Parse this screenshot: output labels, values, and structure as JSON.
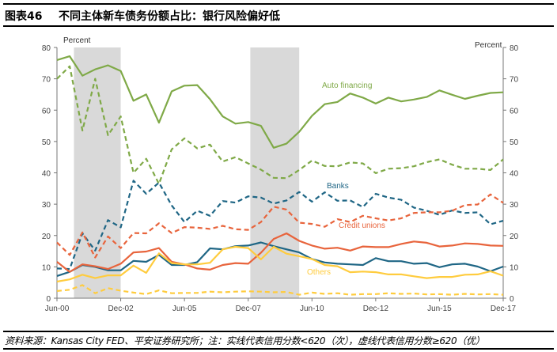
{
  "header": {
    "figure_no": "图表46",
    "title": "不同主体新车债务份额占比：银行风险偏好低"
  },
  "footer": {
    "source": "资料来源：Kansas City FED、平安证券研究所；注：实线代表信用分数<620（次），虚线代表信用分数≥620（优）"
  },
  "chart_data": {
    "type": "line",
    "ylabel_left": "Percent",
    "ylabel_right": "Percent",
    "ylim": [
      0,
      80
    ],
    "yticks": [
      0,
      10,
      20,
      30,
      40,
      50,
      60,
      70,
      80
    ],
    "x": [
      "Jun-00",
      "Dec-00",
      "Jun-01",
      "Dec-01",
      "Jun-02",
      "Dec-02",
      "Jun-03",
      "Dec-03",
      "Jun-04",
      "Dec-04",
      "Jun-05",
      "Dec-05",
      "Jun-06",
      "Dec-06",
      "Jun-07",
      "Dec-07",
      "Jun-08",
      "Dec-08",
      "Jun-09",
      "Dec-09",
      "Jun-10",
      "Dec-10",
      "Jun-11",
      "Dec-11",
      "Jun-12",
      "Dec-12",
      "Jun-13",
      "Dec-13",
      "Jun-14",
      "Dec-14",
      "Jun-15",
      "Dec-15",
      "Jun-16",
      "Dec-16",
      "Jun-17",
      "Dec-17"
    ],
    "xtick_labels": [
      "Jun-00",
      "Dec-02",
      "Jun-05",
      "Dec-07",
      "Jun-10",
      "Dec-12",
      "Jun-15",
      "Dec-17"
    ],
    "shaded_periods": [
      [
        "Feb-01",
        "Dec-02"
      ],
      [
        "Jan-08",
        "Dec-09"
      ]
    ],
    "grid": false,
    "series": [
      {
        "name": "Auto financing",
        "label_visible": true,
        "style": "solid",
        "color": "#7FA947",
        "values": [
          76,
          77.2,
          71,
          73,
          74.3,
          72.5,
          63,
          65,
          56,
          66,
          67.8,
          68,
          63.5,
          58,
          55.7,
          56.2,
          55,
          48,
          49.3,
          53.1,
          58.2,
          61.9,
          62.6,
          65.3,
          64,
          62.1,
          64,
          62.8,
          63.4,
          64.2,
          66.3,
          64.9,
          63.6,
          64.6,
          65.5,
          65.7
        ]
      },
      {
        "style": "dashed",
        "color": "#7FA947",
        "values": [
          70,
          74,
          53.5,
          70,
          52,
          58,
          40,
          44.5,
          36.5,
          47.5,
          51,
          47.8,
          49,
          43.6,
          45,
          43,
          41,
          38.4,
          38.3,
          40.9,
          43.9,
          42.2,
          42.1,
          43.3,
          43,
          39.9,
          41.3,
          41.5,
          42.1,
          43.4,
          44.3,
          42.6,
          41.3,
          41.3,
          40.9,
          44.3
        ]
      },
      {
        "name": "Banks",
        "label_visible": true,
        "style": "dashed",
        "color": "#1F6685",
        "values": [
          9.5,
          9.3,
          20.7,
          15.2,
          24.9,
          22.6,
          37.5,
          33.3,
          36.9,
          29.6,
          24.3,
          27.9,
          26.3,
          31,
          30.5,
          32.5,
          32.1,
          30.2,
          31.2,
          33.9,
          30.8,
          33.8,
          31.1,
          31.2,
          29.1,
          33.3,
          32.1,
          31.4,
          28.9,
          27.9,
          26.6,
          28,
          27.2,
          27.4,
          23.6,
          24.7
        ]
      },
      {
        "style": "solid",
        "color": "#1F6685",
        "values": [
          7.1,
          8.4,
          10.6,
          10,
          8.9,
          8.9,
          11.9,
          11.6,
          13.8,
          10.6,
          10.6,
          11.5,
          15.9,
          15.6,
          16.6,
          16.8,
          17.8,
          16.6,
          15.6,
          14.6,
          12.5,
          11.4,
          11,
          10.8,
          10.6,
          12.8,
          11.8,
          11.8,
          11,
          11.2,
          9.9,
          10.8,
          11,
          10.1,
          8.6,
          10.1
        ]
      },
      {
        "name": "Credit unions",
        "label_visible": true,
        "style": "dashed",
        "color": "#E8643C",
        "values": [
          17.8,
          13.8,
          21,
          13,
          19.7,
          16,
          20.8,
          20.7,
          23.9,
          20.8,
          22.7,
          22.5,
          22.1,
          23.1,
          22,
          21.8,
          24.3,
          29.2,
          28.3,
          24.1,
          23.7,
          22.8,
          25.2,
          24.3,
          26.3,
          25.5,
          24.8,
          25.5,
          27.2,
          27.4,
          27.4,
          27.9,
          29.7,
          29.9,
          33.1,
          30.4
        ]
      },
      {
        "style": "solid",
        "color": "#E8643C",
        "values": [
          11.6,
          8.4,
          10.8,
          10.2,
          9.3,
          11,
          14.6,
          14.9,
          16,
          11.6,
          10.8,
          9.5,
          9.1,
          10.6,
          11.2,
          11,
          14.5,
          18.9,
          20.7,
          18.3,
          16.8,
          15.8,
          16.1,
          15.2,
          16.5,
          16.3,
          16.3,
          17.3,
          18.1,
          17.7,
          16.5,
          16.8,
          17.5,
          17.3,
          16.8,
          16.7
        ]
      },
      {
        "name": "Others",
        "label_visible": true,
        "style": "solid",
        "color": "#FFCC3E",
        "values": [
          5.3,
          6,
          7.5,
          6.4,
          7.3,
          7.3,
          10.4,
          8.1,
          14.3,
          11.2,
          10.8,
          10.8,
          11.3,
          15.6,
          16.4,
          16,
          12.4,
          16.4,
          14.2,
          13.4,
          12.5,
          10.6,
          10.2,
          8.3,
          8.5,
          8.3,
          7.6,
          7.6,
          7,
          6.4,
          6.8,
          6.8,
          7.5,
          7.6,
          8.6,
          7.2
        ]
      },
      {
        "style": "dashed",
        "color": "#FFCC3E",
        "values": [
          2.3,
          2.7,
          4.2,
          1.6,
          3.2,
          2.4,
          1.8,
          1.3,
          2.5,
          1.6,
          1.7,
          1.7,
          2.1,
          1.9,
          2.1,
          2.2,
          2.1,
          1.9,
          2,
          1.1,
          1.8,
          1.4,
          1.6,
          1.1,
          1.3,
          1.3,
          1.6,
          1.4,
          1.5,
          1.2,
          1.3,
          1.1,
          1.4,
          1.2,
          1.3,
          1.1
        ]
      }
    ]
  }
}
